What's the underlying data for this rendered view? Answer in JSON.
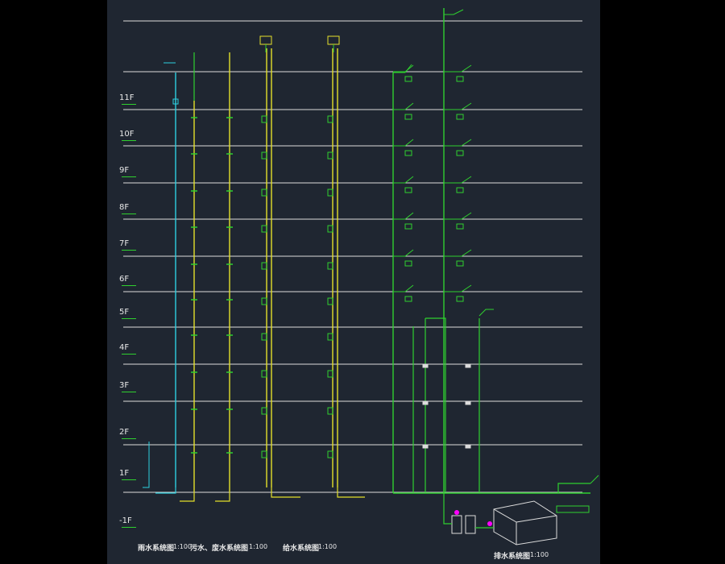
{
  "floors": [
    "11F",
    "10F",
    "9F",
    "8F",
    "7F",
    "6F",
    "5F",
    "4F",
    "3F",
    "2F",
    "1F",
    "-1F"
  ],
  "titles": [
    {
      "text": "雨水系统图",
      "scale": "1:100"
    },
    {
      "text": "污水、废水系统图",
      "scale": "1:100"
    },
    {
      "text": "给水系统图",
      "scale": "1:100"
    },
    {
      "text": "排水系统图",
      "scale": "1:100"
    }
  ],
  "colors": {
    "background": "#1f2631",
    "outer": "#000000",
    "floor_lines": "#dcdcdc",
    "rain_pipe": "#2ed0e0",
    "waste_pipe": "#e4e02a",
    "supply_pipe": "#2fd02f",
    "accent": "#ff00ff"
  }
}
